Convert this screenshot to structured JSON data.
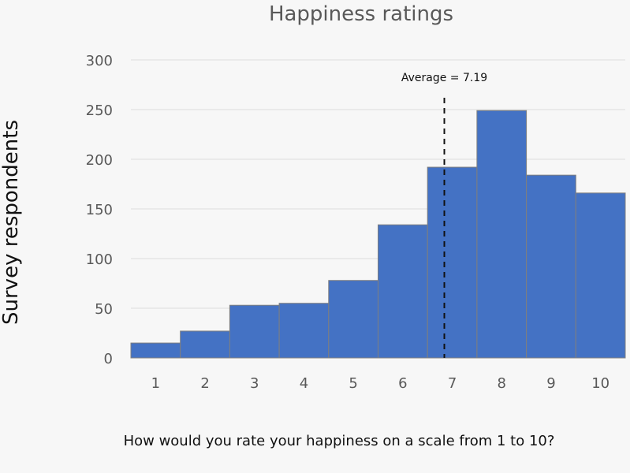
{
  "chart_data": {
    "type": "bar",
    "title": "Happiness ratings",
    "xlabel": "How would you rate your happiness on a scale from 1 to 10?",
    "ylabel": "Survey respondents",
    "categories": [
      "1",
      "2",
      "3",
      "4",
      "5",
      "6",
      "7",
      "8",
      "9",
      "10"
    ],
    "values": [
      15,
      27,
      53,
      55,
      78,
      134,
      192,
      249,
      184,
      166
    ],
    "ylim": [
      0,
      300
    ],
    "yticks": [
      "0",
      "50",
      "100",
      "150",
      "200",
      "250",
      "300"
    ],
    "grid": true,
    "legend": "none",
    "bar_color": "#4472c4",
    "bar_edge_color": "#7f7f7f",
    "annotation": {
      "text": "Average = 7.19",
      "x": 7.19,
      "style": "dashed vertical line"
    }
  }
}
